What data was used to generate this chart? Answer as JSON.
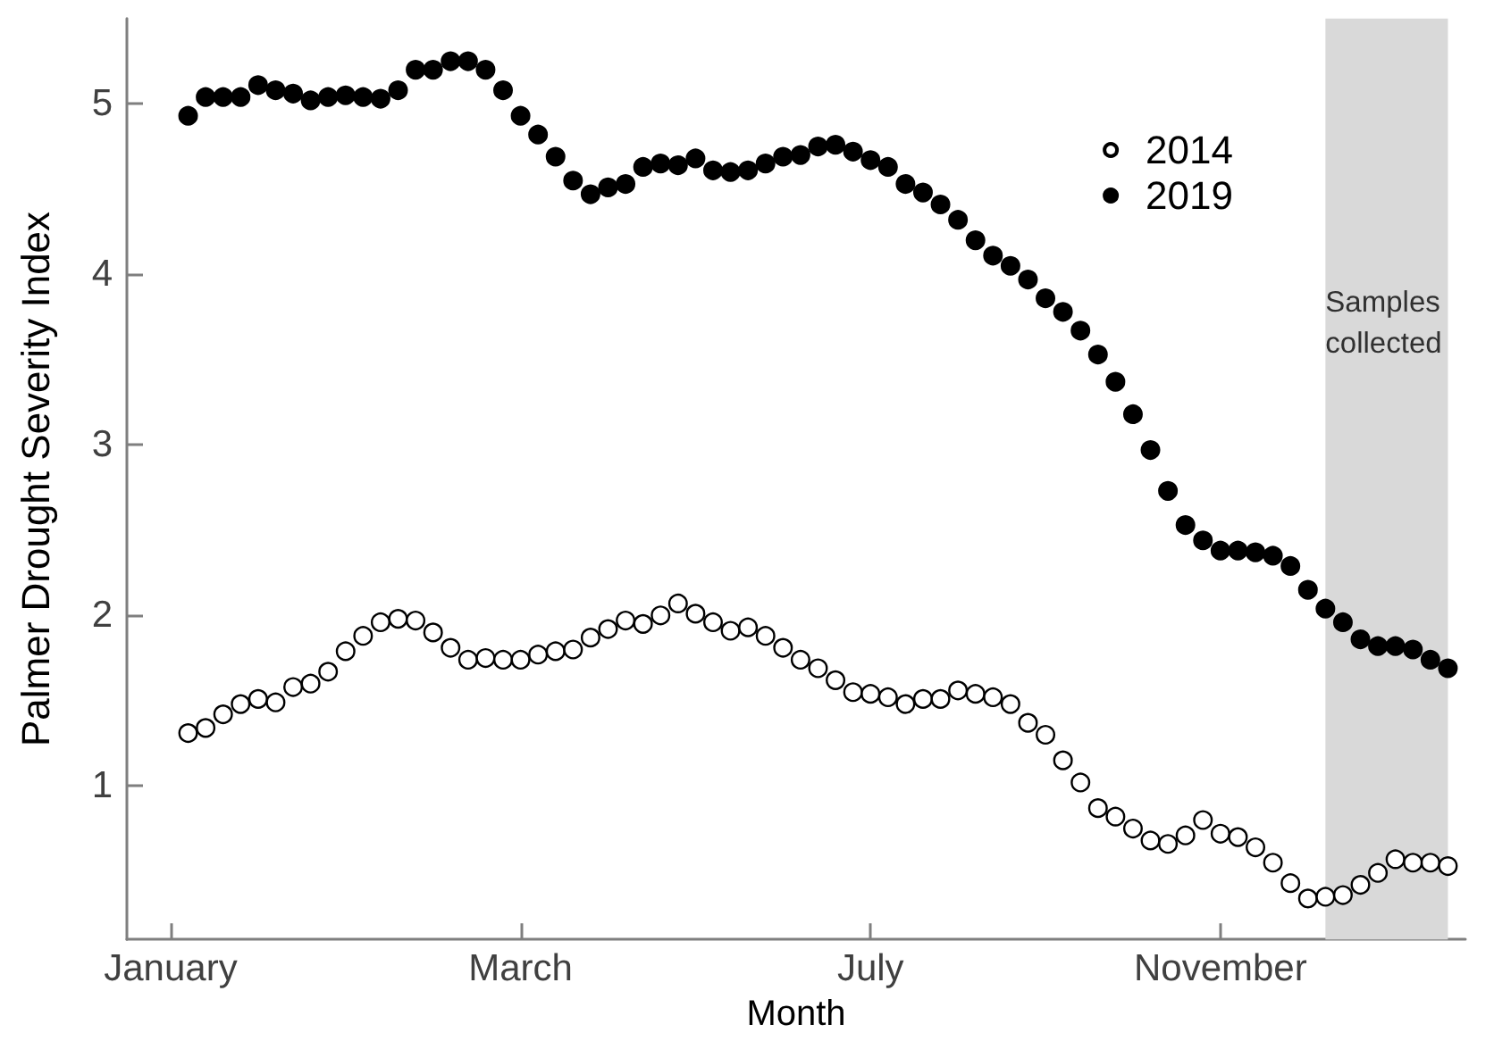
{
  "chart_data": {
    "type": "scatter",
    "xlabel": "Month",
    "ylabel": "Palmer Drought Severity Index",
    "categories": [
      "January",
      null,
      null,
      null,
      null,
      null,
      null,
      null,
      null,
      null,
      null,
      null,
      null,
      null,
      null,
      null,
      null,
      null,
      null,
      null,
      "March",
      null,
      null,
      null,
      null,
      null,
      null,
      null,
      null,
      null,
      null,
      null,
      null,
      null,
      null,
      null,
      null,
      null,
      null,
      null,
      "July",
      null,
      null,
      null,
      null,
      null,
      null,
      null,
      null,
      null,
      null,
      null,
      null,
      null,
      null,
      null,
      null,
      null,
      null,
      null,
      "November",
      null,
      null,
      null,
      null,
      null,
      null,
      null,
      null,
      null,
      null,
      null,
      null,
      null
    ],
    "ylim": [
      0.1,
      5.5
    ],
    "yticks": [
      1,
      2,
      3,
      4,
      5
    ],
    "series": [
      {
        "name": "2014",
        "color": "#ffffff",
        "values": [
          null,
          1.31,
          1.34,
          1.42,
          1.48,
          1.51,
          1.49,
          1.58,
          1.6,
          1.67,
          1.79,
          1.88,
          1.96,
          1.98,
          1.97,
          1.9,
          1.81,
          1.74,
          1.75,
          1.74,
          1.74,
          1.77,
          1.79,
          1.8,
          1.87,
          1.92,
          1.97,
          1.95,
          2.0,
          2.07,
          2.01,
          1.96,
          1.91,
          1.93,
          1.88,
          1.81,
          1.74,
          1.69,
          1.62,
          1.55,
          1.54,
          1.52,
          1.48,
          1.51,
          1.51,
          1.56,
          1.54,
          1.52,
          1.48,
          1.37,
          1.3,
          1.15,
          1.02,
          0.87,
          0.82,
          0.75,
          0.68,
          0.66,
          0.71,
          0.8,
          0.72,
          0.7,
          0.64,
          0.55,
          0.43,
          0.34,
          0.35,
          0.36,
          0.42,
          0.49,
          0.57,
          0.55,
          0.55,
          0.53
        ]
      },
      {
        "name": "2019",
        "color": "#000000",
        "values": [
          null,
          4.93,
          5.04,
          5.04,
          5.04,
          5.11,
          5.08,
          5.06,
          5.02,
          5.04,
          5.05,
          5.04,
          5.03,
          5.08,
          5.2,
          5.2,
          5.25,
          5.25,
          5.2,
          5.08,
          4.93,
          4.82,
          4.69,
          4.55,
          4.47,
          4.51,
          4.53,
          4.63,
          4.65,
          4.64,
          4.68,
          4.61,
          4.6,
          4.61,
          4.65,
          4.69,
          4.7,
          4.75,
          4.76,
          4.72,
          4.67,
          4.63,
          4.53,
          4.48,
          4.41,
          4.32,
          4.2,
          4.11,
          4.05,
          3.97,
          3.86,
          3.78,
          3.67,
          3.53,
          3.37,
          3.18,
          2.97,
          2.73,
          2.53,
          2.44,
          2.38,
          2.38,
          2.37,
          2.35,
          2.29,
          2.15,
          2.04,
          1.96,
          1.86,
          1.82,
          1.82,
          1.8,
          1.74,
          1.69
        ]
      }
    ],
    "annotations": [
      "Samples collected"
    ],
    "legend": "top right",
    "marker": "circle"
  }
}
